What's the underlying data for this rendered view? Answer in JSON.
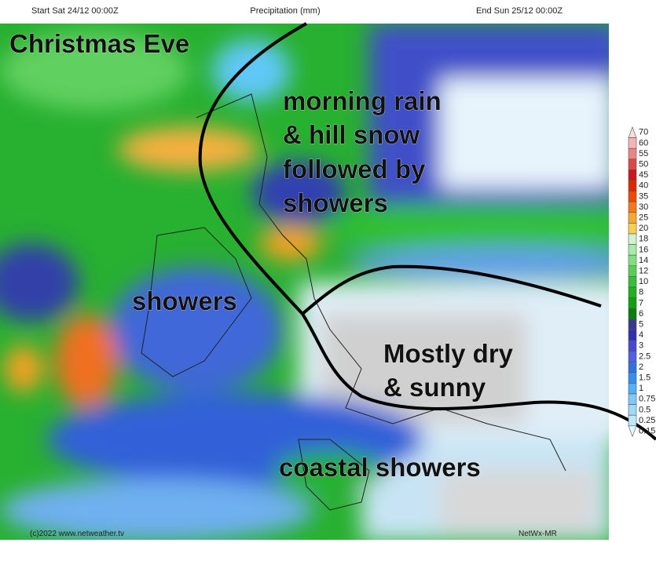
{
  "header": {
    "start": "Start Sat 24/12 00:00Z",
    "title": "Precipitation (mm)",
    "end": "End Sun 25/12 00:00Z"
  },
  "annotations": [
    "Christmas Eve",
    "morning rain",
    "& hill snow",
    "followed by",
    "showers",
    "showers",
    "Mostly dry",
    "& sunny",
    "coastal showers"
  ],
  "legend": {
    "items": [
      {
        "label": "70",
        "color": "#f8dcdc"
      },
      {
        "label": "60",
        "color": "#f4b4b4"
      },
      {
        "label": "55",
        "color": "#ec8484"
      },
      {
        "label": "50",
        "color": "#dc4848"
      },
      {
        "label": "45",
        "color": "#c81818"
      },
      {
        "label": "40",
        "color": "#e02800"
      },
      {
        "label": "35",
        "color": "#f04800"
      },
      {
        "label": "30",
        "color": "#f47818"
      },
      {
        "label": "25",
        "color": "#f8a830"
      },
      {
        "label": "20",
        "color": "#f8d050"
      },
      {
        "label": "18",
        "color": "#d0f4d0"
      },
      {
        "label": "16",
        "color": "#a8eca8"
      },
      {
        "label": "14",
        "color": "#80e080"
      },
      {
        "label": "12",
        "color": "#58d058"
      },
      {
        "label": "10",
        "color": "#38c038"
      },
      {
        "label": "8",
        "color": "#20b020"
      },
      {
        "label": "7",
        "color": "#10a010"
      },
      {
        "label": "6",
        "color": "#088008"
      },
      {
        "label": "5",
        "color": "#383890"
      },
      {
        "label": "4",
        "color": "#3030b0"
      },
      {
        "label": "3",
        "color": "#4848d0"
      },
      {
        "label": "2.5",
        "color": "#5060e0"
      },
      {
        "label": "2",
        "color": "#3070e0"
      },
      {
        "label": "1.5",
        "color": "#3090f0"
      },
      {
        "label": "1",
        "color": "#50b0f8"
      },
      {
        "label": "0.75",
        "color": "#80c8f8"
      },
      {
        "label": "0.5",
        "color": "#a0d8f8"
      },
      {
        "label": "0.25",
        "color": "#c0e8fc"
      },
      {
        "label": "0.15",
        "color": "#e4f6fe"
      }
    ]
  },
  "footer": {
    "copyright": "(c)2022 www.netweather.tv",
    "model": "NetWx-MR"
  }
}
